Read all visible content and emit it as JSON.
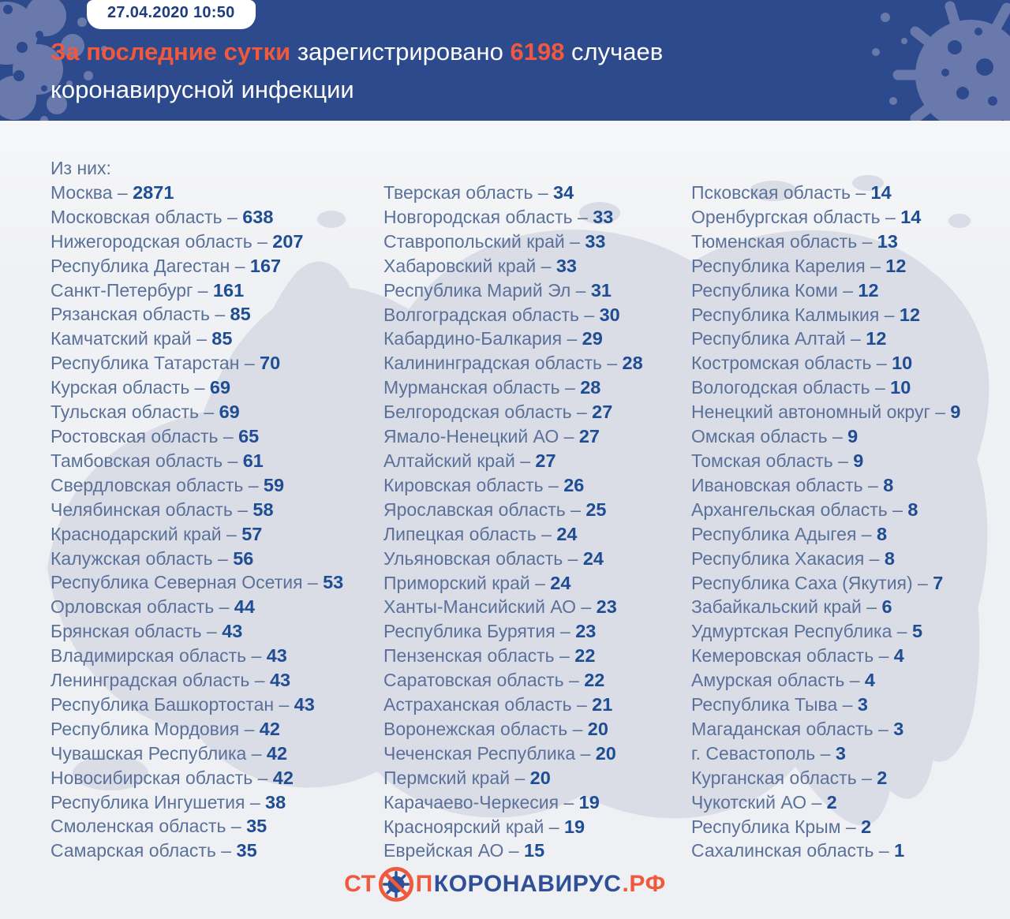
{
  "header": {
    "badge": "27.04.2020 10:50",
    "title": {
      "highlight1": "За последние сутки",
      "text1": " зарегистрировано ",
      "highlight2": "6198",
      "text2": " случаев",
      "line2": "коронавирусной инфекции"
    }
  },
  "list": {
    "intro": "Из них:",
    "separator": " – ",
    "columns": [
      [
        {
          "name": "Москва",
          "value": 2871
        },
        {
          "name": "Московская область",
          "value": 638
        },
        {
          "name": "Нижегородская область",
          "value": 207
        },
        {
          "name": "Республика Дагестан",
          "value": 167
        },
        {
          "name": "Санкт-Петербург",
          "value": 161
        },
        {
          "name": "Рязанская область",
          "value": 85
        },
        {
          "name": "Камчатский край",
          "value": 85
        },
        {
          "name": "Республика Татарстан",
          "value": 70
        },
        {
          "name": "Курская область",
          "value": 69
        },
        {
          "name": "Тульская область",
          "value": 69
        },
        {
          "name": "Ростовская область",
          "value": 65
        },
        {
          "name": "Тамбовская область",
          "value": 61
        },
        {
          "name": "Свердловская область",
          "value": 59
        },
        {
          "name": "Челябинская область",
          "value": 58
        },
        {
          "name": "Краснодарский край",
          "value": 57
        },
        {
          "name": "Калужская область",
          "value": 56
        },
        {
          "name": "Республика Северная Осетия",
          "value": 53
        },
        {
          "name": "Орловская область",
          "value": 44
        },
        {
          "name": "Брянская область",
          "value": 43
        },
        {
          "name": "Владимирская область",
          "value": 43
        },
        {
          "name": "Ленинградская область",
          "value": 43
        },
        {
          "name": "Республика Башкортостан",
          "value": 43
        },
        {
          "name": "Республика Мордовия",
          "value": 42
        },
        {
          "name": "Чувашская Республика",
          "value": 42
        },
        {
          "name": "Новосибирская область",
          "value": 42
        },
        {
          "name": "Республика Ингушетия",
          "value": 38
        },
        {
          "name": "Смоленская область",
          "value": 35
        },
        {
          "name": "Самарская область",
          "value": 35
        }
      ],
      [
        {
          "name": "Тверская область",
          "value": 34
        },
        {
          "name": "Новгородская область",
          "value": 33
        },
        {
          "name": "Ставропольский край",
          "value": 33
        },
        {
          "name": "Хабаровский край",
          "value": 33
        },
        {
          "name": "Республика Марий Эл",
          "value": 31
        },
        {
          "name": "Волгоградская область",
          "value": 30
        },
        {
          "name": "Кабардино-Балкария",
          "value": 29
        },
        {
          "name": "Калининградская область",
          "value": 28
        },
        {
          "name": "Мурманская область",
          "value": 28
        },
        {
          "name": "Белгородская область",
          "value": 27
        },
        {
          "name": "Ямало-Ненецкий АО",
          "value": 27
        },
        {
          "name": "Алтайский край",
          "value": 27
        },
        {
          "name": "Кировская область",
          "value": 26
        },
        {
          "name": "Ярославская область",
          "value": 25
        },
        {
          "name": "Липецкая область",
          "value": 24
        },
        {
          "name": "Ульяновская область",
          "value": 24
        },
        {
          "name": "Приморский край",
          "value": 24
        },
        {
          "name": "Ханты-Мансийский АО",
          "value": 23
        },
        {
          "name": "Республика Бурятия",
          "value": 23
        },
        {
          "name": "Пензенская область",
          "value": 22
        },
        {
          "name": "Саратовская область",
          "value": 22
        },
        {
          "name": "Астраханская область",
          "value": 21
        },
        {
          "name": "Воронежская область",
          "value": 20
        },
        {
          "name": "Чеченская Республика",
          "value": 20
        },
        {
          "name": "Пермский край",
          "value": 20
        },
        {
          "name": "Карачаево-Черкесия",
          "value": 19
        },
        {
          "name": "Красноярский край",
          "value": 19
        },
        {
          "name": "Еврейская АО",
          "value": 15
        }
      ],
      [
        {
          "name": "Псковская область",
          "value": 14
        },
        {
          "name": "Оренбургская область",
          "value": 14
        },
        {
          "name": "Тюменская область",
          "value": 13
        },
        {
          "name": "Республика Карелия",
          "value": 12
        },
        {
          "name": "Республика Коми",
          "value": 12
        },
        {
          "name": "Республика Калмыкия",
          "value": 12
        },
        {
          "name": "Республика Алтай",
          "value": 12
        },
        {
          "name": "Костромская область",
          "value": 10
        },
        {
          "name": "Вологодская область",
          "value": 10
        },
        {
          "name": "Ненецкий автономный округ",
          "value": 9
        },
        {
          "name": "Омская область",
          "value": 9
        },
        {
          "name": "Томская область",
          "value": 9
        },
        {
          "name": "Ивановская область",
          "value": 8
        },
        {
          "name": "Архангельская область",
          "value": 8
        },
        {
          "name": "Республика Адыгея",
          "value": 8
        },
        {
          "name": "Республика Хакасия",
          "value": 8
        },
        {
          "name": "Республика Саха (Якутия)",
          "value": 7
        },
        {
          "name": "Забайкальский край",
          "value": 6
        },
        {
          "name": "Удмуртская Республика",
          "value": 5
        },
        {
          "name": "Кемеровская область",
          "value": 4
        },
        {
          "name": "Амурская область",
          "value": 4
        },
        {
          "name": "Республика Тыва",
          "value": 3
        },
        {
          "name": "Магаданская область",
          "value": 3
        },
        {
          "name": "г. Севастополь",
          "value": 3
        },
        {
          "name": "Курганская область",
          "value": 2
        },
        {
          "name": "Чукотский АО",
          "value": 2
        },
        {
          "name": "Республика Крым",
          "value": 2
        },
        {
          "name": "Сахалинская область",
          "value": 1
        }
      ]
    ]
  },
  "footer": {
    "logo": {
      "part1": "СТ",
      "part2": "П",
      "part3": "КОРОНАВИРУС",
      "part4": ".РФ"
    }
  },
  "colors": {
    "header-bg": "#2c4a8c",
    "accent": "#f0593e",
    "badge-text": "#1e3d7d",
    "name-color": "#5a7199",
    "value-color": "#1e4d93",
    "logo-blue": "#2f5096",
    "map-fill": "#dadce6",
    "splat-fill": "#6979ac"
  }
}
